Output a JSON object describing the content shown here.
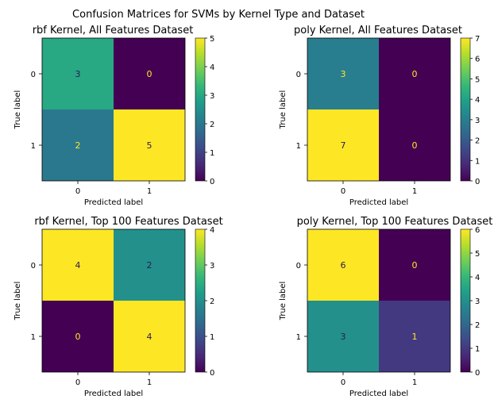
{
  "figure": {
    "title": "Confusion Matrices for SVMs by Kernel Type and Dataset"
  },
  "colors": {
    "viridis": [
      "#440154",
      "#482878",
      "#3e4989",
      "#31688e",
      "#26828e",
      "#1f9e89",
      "#35b779",
      "#6ece58",
      "#b5de2b",
      "#fde725"
    ],
    "text_on_dark": "#fde725",
    "text_on_light": "#2b1a4f"
  },
  "chart_data": [
    {
      "type": "heatmap",
      "title": "rbf Kernel, All Features Dataset",
      "xlabel": "Predicted label",
      "ylabel": "True label",
      "x_ticks": [
        "0",
        "1"
      ],
      "y_ticks": [
        "0",
        "1"
      ],
      "matrix": [
        [
          3,
          0
        ],
        [
          2,
          5
        ]
      ],
      "vmin": 0,
      "vmax": 5,
      "colorbar_ticks": [
        0,
        1,
        2,
        3,
        4,
        5
      ]
    },
    {
      "type": "heatmap",
      "title": "poly Kernel, All Features Dataset",
      "xlabel": "Predicted label",
      "ylabel": "True label",
      "x_ticks": [
        "0",
        "1"
      ],
      "y_ticks": [
        "0",
        "1"
      ],
      "matrix": [
        [
          3,
          0
        ],
        [
          7,
          0
        ]
      ],
      "vmin": 0,
      "vmax": 7,
      "colorbar_ticks": [
        0,
        1,
        2,
        3,
        4,
        5,
        6,
        7
      ]
    },
    {
      "type": "heatmap",
      "title": "rbf Kernel, Top 100 Features Dataset",
      "xlabel": "Predicted label",
      "ylabel": "True label",
      "x_ticks": [
        "0",
        "1"
      ],
      "y_ticks": [
        "0",
        "1"
      ],
      "matrix": [
        [
          4,
          2
        ],
        [
          0,
          4
        ]
      ],
      "vmin": 0,
      "vmax": 4,
      "colorbar_ticks": [
        0,
        1,
        2,
        3,
        4
      ]
    },
    {
      "type": "heatmap",
      "title": "poly Kernel, Top 100 Features Dataset",
      "xlabel": "Predicted label",
      "ylabel": "True label",
      "x_ticks": [
        "0",
        "1"
      ],
      "y_ticks": [
        "0",
        "1"
      ],
      "matrix": [
        [
          6,
          0
        ],
        [
          3,
          1
        ]
      ],
      "vmin": 0,
      "vmax": 6,
      "colorbar_ticks": [
        0,
        1,
        2,
        3,
        4,
        5,
        6
      ]
    }
  ]
}
